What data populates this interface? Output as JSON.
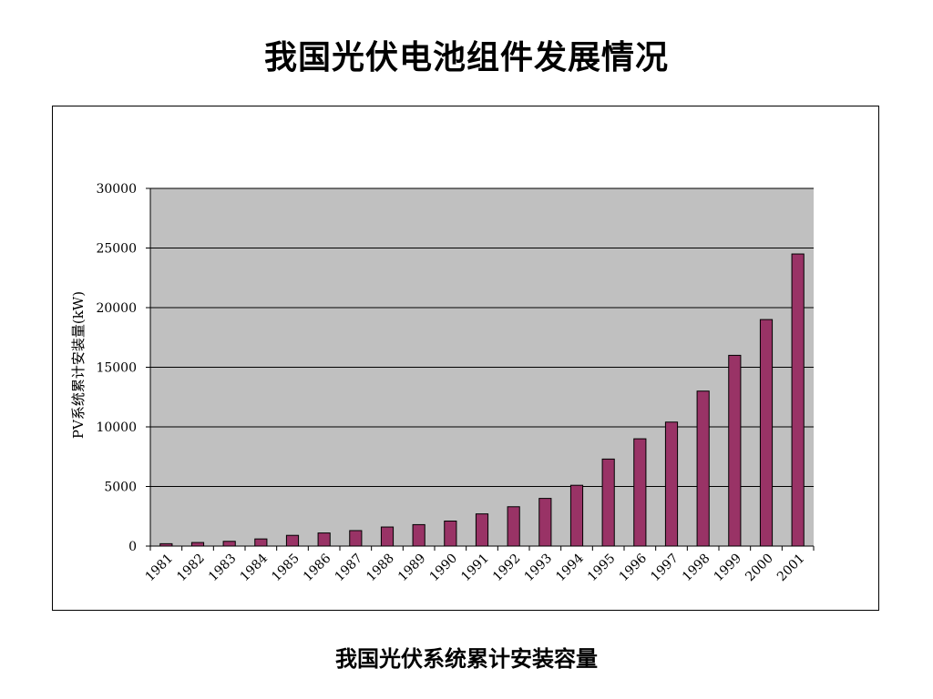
{
  "slide": {
    "title": "我国光伏电池组件发展情况",
    "caption": "我国光伏系统累计安装容量"
  },
  "colors": {
    "plot_background": "#c0c0c0",
    "bar_fill": "#993366",
    "bar_stroke": "#000000",
    "gridline": "#000000"
  },
  "chart_data": {
    "type": "bar",
    "title": "",
    "xlabel": "",
    "ylabel": "PV系统累计安装量(kW)",
    "ylim": [
      0,
      30000
    ],
    "yticks": [
      0,
      5000,
      10000,
      15000,
      20000,
      25000,
      30000
    ],
    "grid": true,
    "legend": "none",
    "categories": [
      "1981",
      "1982",
      "1983",
      "1984",
      "1985",
      "1986",
      "1987",
      "1988",
      "1989",
      "1990",
      "1991",
      "1992",
      "1993",
      "1994",
      "1995",
      "1996",
      "1997",
      "1998",
      "1999",
      "2000",
      "2001"
    ],
    "values": [
      200,
      300,
      400,
      600,
      900,
      1100,
      1300,
      1600,
      1800,
      2100,
      2700,
      3300,
      4000,
      5100,
      7300,
      9000,
      10400,
      13000,
      16000,
      19000,
      24500
    ]
  }
}
